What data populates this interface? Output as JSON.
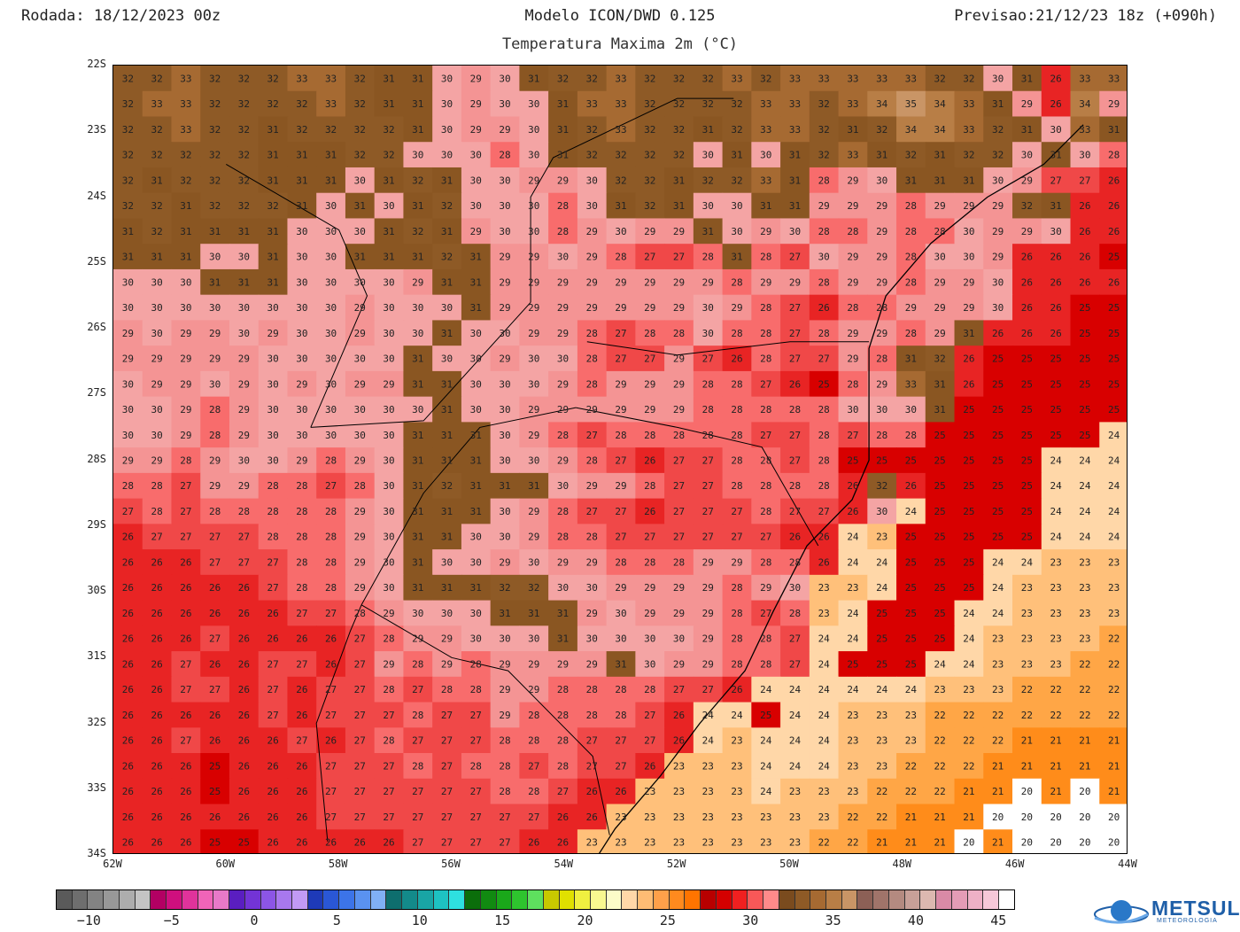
{
  "header": {
    "run": "Rodada: 18/12/2023 00z",
    "model": "Modelo ICON/DWD 0.125",
    "forecast": "Previsao:21/12/23 18z (+090h)",
    "field": "Temperatura Maxima 2m (°C)"
  },
  "map": {
    "lon_range": [
      -62,
      -44
    ],
    "lat_range": [
      -34,
      -22
    ],
    "lat_labels": [
      "22S",
      "23S",
      "24S",
      "25S",
      "26S",
      "27S",
      "28S",
      "29S",
      "30S",
      "31S",
      "32S",
      "33S",
      "34S"
    ],
    "lon_labels": [
      "62W",
      "60W",
      "58W",
      "56W",
      "54W",
      "52W",
      "50W",
      "48W",
      "46W",
      "44W"
    ],
    "grid_values": [
      [
        32,
        32,
        33,
        32,
        32,
        32,
        33,
        33,
        32,
        31,
        31,
        30,
        29,
        30,
        31,
        32,
        32,
        33,
        32,
        32,
        32,
        33,
        32,
        33,
        33,
        33,
        33,
        33,
        32,
        32,
        30,
        31,
        26,
        33,
        33
      ],
      [
        32,
        33,
        33,
        32,
        32,
        32,
        32,
        33,
        32,
        31,
        31,
        30,
        29,
        30,
        30,
        31,
        33,
        33,
        32,
        32,
        32,
        32,
        33,
        33,
        32,
        33,
        34,
        35,
        34,
        33,
        31,
        29,
        26,
        34,
        29
      ],
      [
        32,
        32,
        33,
        32,
        32,
        31,
        32,
        32,
        32,
        32,
        31,
        30,
        29,
        29,
        30,
        31,
        32,
        33,
        32,
        32,
        31,
        32,
        33,
        33,
        32,
        31,
        32,
        34,
        34,
        33,
        32,
        31,
        30,
        33,
        31
      ],
      [
        32,
        32,
        32,
        32,
        32,
        31,
        31,
        31,
        32,
        32,
        30,
        30,
        30,
        28,
        30,
        31,
        32,
        32,
        32,
        32,
        30,
        31,
        30,
        31,
        32,
        33,
        31,
        32,
        31,
        32,
        32,
        30,
        31,
        30,
        28
      ],
      [
        32,
        31,
        32,
        32,
        32,
        31,
        31,
        31,
        30,
        31,
        32,
        31,
        30,
        30,
        29,
        29,
        30,
        32,
        32,
        31,
        32,
        32,
        33,
        31,
        28,
        29,
        30,
        31,
        31,
        31,
        30,
        29,
        27,
        27,
        26
      ],
      [
        32,
        32,
        31,
        32,
        32,
        32,
        31,
        30,
        31,
        30,
        31,
        32,
        30,
        30,
        30,
        28,
        30,
        31,
        32,
        31,
        30,
        30,
        31,
        31,
        29,
        29,
        29,
        28,
        29,
        29,
        29,
        32,
        31,
        26,
        26
      ],
      [
        31,
        32,
        31,
        31,
        31,
        31,
        30,
        30,
        30,
        31,
        32,
        31,
        29,
        30,
        30,
        28,
        29,
        30,
        29,
        29,
        31,
        30,
        29,
        30,
        28,
        28,
        29,
        28,
        28,
        30,
        29,
        29,
        30,
        26,
        26
      ],
      [
        31,
        31,
        31,
        30,
        30,
        31,
        30,
        30,
        31,
        31,
        31,
        32,
        31,
        29,
        29,
        30,
        29,
        28,
        27,
        27,
        28,
        31,
        28,
        27,
        30,
        29,
        29,
        28,
        30,
        30,
        29,
        26,
        26,
        26,
        25
      ],
      [
        30,
        30,
        30,
        31,
        31,
        31,
        30,
        30,
        30,
        30,
        29,
        31,
        31,
        29,
        29,
        29,
        29,
        29,
        29,
        29,
        29,
        28,
        29,
        29,
        28,
        29,
        29,
        28,
        29,
        29,
        30,
        26,
        26,
        26,
        26
      ],
      [
        30,
        30,
        30,
        30,
        30,
        30,
        30,
        30,
        29,
        30,
        30,
        30,
        31,
        29,
        29,
        29,
        29,
        29,
        29,
        29,
        30,
        29,
        28,
        27,
        26,
        28,
        28,
        29,
        29,
        29,
        30,
        26,
        26,
        25,
        25
      ],
      [
        29,
        30,
        29,
        29,
        30,
        29,
        30,
        30,
        29,
        30,
        30,
        31,
        30,
        30,
        29,
        29,
        28,
        27,
        28,
        28,
        30,
        28,
        28,
        27,
        28,
        29,
        29,
        28,
        29,
        31,
        26,
        26,
        26,
        25,
        25
      ],
      [
        29,
        29,
        29,
        29,
        29,
        30,
        30,
        30,
        30,
        30,
        31,
        30,
        30,
        29,
        30,
        30,
        28,
        27,
        27,
        29,
        27,
        26,
        28,
        27,
        27,
        29,
        28,
        31,
        32,
        26,
        25,
        25,
        25,
        25,
        25
      ],
      [
        30,
        29,
        29,
        30,
        29,
        30,
        29,
        30,
        29,
        29,
        31,
        31,
        30,
        30,
        30,
        29,
        28,
        29,
        29,
        29,
        28,
        28,
        27,
        26,
        25,
        28,
        29,
        33,
        31,
        26,
        25,
        25,
        25,
        25,
        25
      ],
      [
        30,
        30,
        29,
        28,
        29,
        30,
        30,
        30,
        30,
        30,
        30,
        31,
        30,
        30,
        29,
        29,
        29,
        29,
        29,
        29,
        28,
        28,
        28,
        28,
        28,
        30,
        30,
        30,
        31,
        25,
        25,
        25,
        25,
        25,
        25
      ],
      [
        30,
        30,
        29,
        28,
        29,
        30,
        30,
        30,
        30,
        30,
        31,
        31,
        31,
        30,
        29,
        28,
        27,
        28,
        28,
        28,
        28,
        28,
        27,
        27,
        28,
        27,
        28,
        28,
        25,
        25,
        25,
        25,
        25,
        25,
        24
      ],
      [
        29,
        29,
        28,
        29,
        30,
        30,
        29,
        28,
        29,
        30,
        31,
        31,
        31,
        30,
        30,
        29,
        28,
        27,
        26,
        27,
        27,
        28,
        28,
        27,
        28,
        25,
        25,
        25,
        25,
        25,
        25,
        25,
        24,
        24,
        24
      ],
      [
        28,
        28,
        27,
        29,
        29,
        28,
        28,
        27,
        28,
        30,
        31,
        32,
        31,
        31,
        31,
        30,
        29,
        29,
        28,
        27,
        27,
        28,
        28,
        28,
        28,
        26,
        32,
        26,
        25,
        25,
        25,
        25,
        24,
        24,
        24
      ],
      [
        27,
        28,
        27,
        28,
        28,
        28,
        28,
        28,
        29,
        30,
        31,
        31,
        31,
        30,
        29,
        28,
        27,
        27,
        26,
        27,
        27,
        27,
        28,
        27,
        27,
        26,
        30,
        24,
        25,
        25,
        25,
        25,
        24,
        24,
        24
      ],
      [
        26,
        27,
        27,
        27,
        27,
        28,
        28,
        28,
        29,
        30,
        31,
        31,
        30,
        30,
        29,
        28,
        28,
        27,
        27,
        27,
        27,
        27,
        27,
        26,
        26,
        24,
        23,
        25,
        25,
        25,
        25,
        25,
        24,
        24,
        24
      ],
      [
        26,
        26,
        26,
        27,
        27,
        27,
        28,
        28,
        29,
        30,
        31,
        30,
        30,
        29,
        30,
        29,
        29,
        28,
        28,
        28,
        29,
        29,
        28,
        28,
        26,
        24,
        24,
        25,
        25,
        25,
        24,
        24,
        23,
        23,
        23
      ],
      [
        26,
        26,
        26,
        26,
        26,
        27,
        28,
        28,
        29,
        30,
        31,
        31,
        31,
        32,
        32,
        30,
        30,
        29,
        29,
        29,
        29,
        28,
        29,
        30,
        23,
        23,
        24,
        25,
        25,
        25,
        24,
        23,
        23,
        23,
        23
      ],
      [
        26,
        26,
        26,
        26,
        26,
        26,
        27,
        27,
        28,
        29,
        30,
        30,
        30,
        31,
        31,
        31,
        29,
        30,
        29,
        29,
        29,
        28,
        27,
        28,
        23,
        24,
        25,
        25,
        25,
        24,
        24,
        23,
        23,
        23,
        23
      ],
      [
        26,
        26,
        26,
        27,
        26,
        26,
        26,
        26,
        27,
        28,
        29,
        29,
        30,
        30,
        30,
        31,
        30,
        30,
        30,
        30,
        29,
        28,
        28,
        27,
        24,
        24,
        25,
        25,
        25,
        24,
        23,
        23,
        23,
        23,
        22
      ],
      [
        26,
        26,
        27,
        26,
        26,
        27,
        27,
        26,
        27,
        29,
        28,
        29,
        28,
        29,
        29,
        29,
        29,
        31,
        30,
        29,
        29,
        28,
        28,
        27,
        24,
        25,
        25,
        25,
        24,
        24,
        23,
        23,
        23,
        22,
        22
      ],
      [
        26,
        26,
        27,
        27,
        26,
        27,
        26,
        27,
        27,
        28,
        27,
        28,
        28,
        29,
        29,
        28,
        28,
        28,
        28,
        27,
        27,
        26,
        24,
        24,
        24,
        24,
        24,
        24,
        23,
        23,
        23,
        22,
        22,
        22,
        22
      ],
      [
        26,
        26,
        26,
        26,
        26,
        27,
        26,
        27,
        27,
        27,
        28,
        27,
        27,
        29,
        28,
        28,
        28,
        28,
        27,
        26,
        24,
        24,
        25,
        24,
        24,
        23,
        23,
        23,
        22,
        22,
        22,
        22,
        22,
        22,
        22
      ],
      [
        26,
        26,
        27,
        26,
        26,
        26,
        27,
        26,
        27,
        28,
        27,
        27,
        27,
        28,
        28,
        28,
        27,
        27,
        27,
        26,
        24,
        23,
        24,
        24,
        24,
        23,
        23,
        23,
        22,
        22,
        22,
        21,
        21,
        21,
        21
      ],
      [
        26,
        26,
        26,
        25,
        26,
        26,
        26,
        27,
        27,
        27,
        28,
        27,
        28,
        28,
        27,
        28,
        27,
        27,
        26,
        23,
        23,
        23,
        24,
        24,
        24,
        23,
        23,
        22,
        22,
        22,
        21,
        21,
        21,
        21,
        21
      ],
      [
        26,
        26,
        26,
        25,
        26,
        26,
        26,
        27,
        27,
        27,
        27,
        27,
        27,
        28,
        28,
        27,
        26,
        26,
        23,
        23,
        23,
        23,
        24,
        23,
        23,
        23,
        22,
        22,
        22,
        21,
        21,
        20,
        21,
        20,
        21
      ],
      [
        26,
        26,
        26,
        26,
        26,
        26,
        26,
        27,
        27,
        27,
        27,
        27,
        27,
        27,
        27,
        26,
        26,
        23,
        23,
        23,
        23,
        23,
        23,
        23,
        23,
        22,
        22,
        21,
        21,
        21,
        20,
        20,
        20,
        20,
        20
      ],
      [
        26,
        26,
        26,
        25,
        25,
        26,
        26,
        26,
        26,
        26,
        27,
        27,
        27,
        27,
        26,
        26,
        23,
        23,
        23,
        23,
        23,
        23,
        23,
        23,
        22,
        22,
        21,
        21,
        21,
        20,
        21,
        20,
        20,
        20,
        20
      ]
    ]
  },
  "colorbar": {
    "labels": [
      "−10",
      "−5",
      "0",
      "5",
      "10",
      "15",
      "20",
      "25",
      "30",
      "35",
      "40",
      "45"
    ],
    "colors": [
      "#5a5a5a",
      "#6e6e6e",
      "#838383",
      "#989898",
      "#adadad",
      "#c4c4c4",
      "#b30063",
      "#cf0f7e",
      "#e0339b",
      "#f064b8",
      "#e879c8",
      "#5a1ec0",
      "#7334d6",
      "#8c55e6",
      "#a878ee",
      "#c29af5",
      "#1e3ab8",
      "#2a57d6",
      "#3c74e8",
      "#5a92f0",
      "#80b0f5",
      "#0e6e6e",
      "#138a8a",
      "#19a5a5",
      "#1ec2c2",
      "#2ee0e0",
      "#0b6e0b",
      "#118a11",
      "#1aa81a",
      "#2ec42e",
      "#5ee05e",
      "#c8c800",
      "#e0e000",
      "#f0f040",
      "#f8f890",
      "#fcfcc8",
      "#ffd7a8",
      "#ffbc74",
      "#ffa04a",
      "#ff8a1e",
      "#ff7400",
      "#b80000",
      "#d40000",
      "#f02020",
      "#f85858",
      "#ff8a8a",
      "#7a4b1e",
      "#8e5a26",
      "#a66a32",
      "#b87e46",
      "#c99566",
      "#8c6056",
      "#a0746a",
      "#b48a80",
      "#c8a098",
      "#dcb8b0",
      "#d98aa6",
      "#e49cb6",
      "#eeb0c6",
      "#f6c8d8",
      "#ffffff"
    ],
    "range": [
      -12,
      46
    ]
  },
  "logo": {
    "name": "METSUL",
    "subtitle": "METEOROLOGIA"
  }
}
